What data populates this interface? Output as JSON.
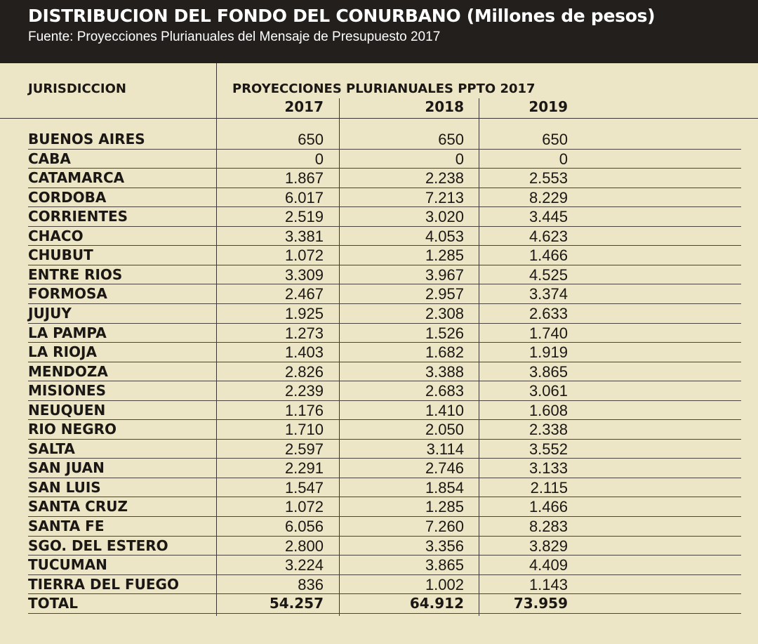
{
  "title": "DISTRIBUCION DEL FONDO DEL CONURBANO (Millones de pesos)",
  "subtitle": "Fuente: Proyecciones Plurianuales del Mensaje de Presupuesto 2017",
  "header": {
    "jurisdiccion": "JURISDICCION",
    "group": "PROYECCIONES PLURIANUALES PPTO 2017"
  },
  "chart_data": {
    "type": "table",
    "title": "DISTRIBUCION DEL FONDO DEL CONURBANO (Millones de pesos)",
    "columns": [
      "2017",
      "2018",
      "2019"
    ],
    "rows": [
      {
        "name": "BUENOS AIRES",
        "values": [
          "650",
          "650",
          "650"
        ]
      },
      {
        "name": "CABA",
        "values": [
          "0",
          "0",
          "0"
        ]
      },
      {
        "name": "CATAMARCA",
        "values": [
          "1.867",
          "2.238",
          "2.553"
        ]
      },
      {
        "name": "CORDOBA",
        "values": [
          "6.017",
          "7.213",
          "8.229"
        ]
      },
      {
        "name": "CORRIENTES",
        "values": [
          "2.519",
          "3.020",
          "3.445"
        ]
      },
      {
        "name": "CHACO",
        "values": [
          "3.381",
          "4.053",
          "4.623"
        ]
      },
      {
        "name": "CHUBUT",
        "values": [
          "1.072",
          "1.285",
          "1.466"
        ]
      },
      {
        "name": "ENTRE RIOS",
        "values": [
          "3.309",
          "3.967",
          "4.525"
        ]
      },
      {
        "name": "FORMOSA",
        "values": [
          "2.467",
          "2.957",
          "3.374"
        ]
      },
      {
        "name": "JUJUY",
        "values": [
          "1.925",
          "2.308",
          "2.633"
        ]
      },
      {
        "name": "LA PAMPA",
        "values": [
          "1.273",
          "1.526",
          "1.740"
        ]
      },
      {
        "name": "LA RIOJA",
        "values": [
          "1.403",
          "1.682",
          "1.919"
        ]
      },
      {
        "name": "MENDOZA",
        "values": [
          "2.826",
          "3.388",
          "3.865"
        ]
      },
      {
        "name": "MISIONES",
        "values": [
          "2.239",
          "2.683",
          "3.061"
        ]
      },
      {
        "name": "NEUQUEN",
        "values": [
          "1.176",
          "1.410",
          "1.608"
        ]
      },
      {
        "name": "RIO NEGRO",
        "values": [
          "1.710",
          "2.050",
          "2.338"
        ]
      },
      {
        "name": "SALTA",
        "values": [
          "2.597",
          "3.114",
          "3.552"
        ]
      },
      {
        "name": "SAN JUAN",
        "values": [
          "2.291",
          "2.746",
          "3.133"
        ]
      },
      {
        "name": "SAN LUIS",
        "values": [
          "1.547",
          "1.854",
          "2.115"
        ]
      },
      {
        "name": "SANTA CRUZ",
        "values": [
          "1.072",
          "1.285",
          "1.466"
        ]
      },
      {
        "name": "SANTA FE",
        "values": [
          "6.056",
          "7.260",
          "8.283"
        ]
      },
      {
        "name": "SGO. DEL ESTERO",
        "values": [
          "2.800",
          "3.356",
          "3.829"
        ]
      },
      {
        "name": "TUCUMAN",
        "values": [
          "3.224",
          "3.865",
          "4.409"
        ]
      },
      {
        "name": "TIERRA DEL FUEGO",
        "values": [
          "836",
          "1.002",
          "1.143"
        ]
      }
    ],
    "total": {
      "name": "TOTAL",
      "values": [
        "54.257",
        "64.912",
        "73.959"
      ]
    }
  }
}
